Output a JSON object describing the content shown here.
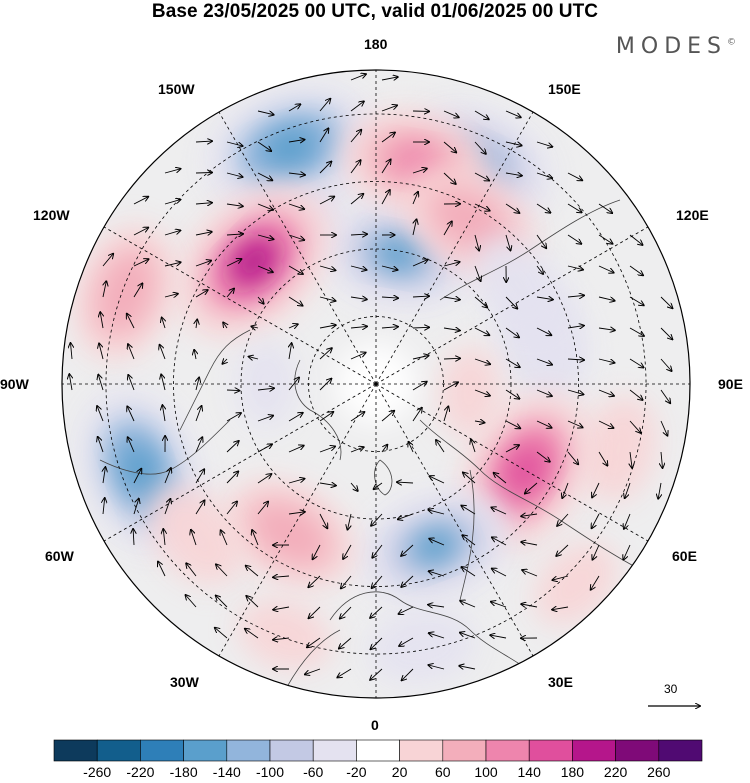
{
  "title": "Base 23/05/2025 00 UTC, valid 01/06/2025 00 UTC",
  "brand": "MODES",
  "brand_mark": "©",
  "longitude_labels": {
    "top": "180",
    "top_left": "150W",
    "top_right": "150E",
    "upper_left": "120W",
    "upper_right": "120E",
    "left": "90W",
    "right": "90E",
    "lower_left": "60W",
    "lower_right": "60E",
    "bottom_left": "30W",
    "bottom_right": "30E",
    "bottom": "0"
  },
  "vector_scale": {
    "value": "30"
  },
  "colorbar": {
    "labels": [
      "-260",
      "-220",
      "-180",
      "-140",
      "-100",
      "-60",
      "-20",
      "20",
      "60",
      "100",
      "140",
      "180",
      "220",
      "260"
    ],
    "colors": [
      "#0d3a5c",
      "#125e8c",
      "#2e7fb8",
      "#5a9fcc",
      "#92b5dc",
      "#c3c9e4",
      "#e4e2f0",
      "#ffffff",
      "#f8d4d6",
      "#f3aebb",
      "#ee85ad",
      "#e04f9d",
      "#b5168b",
      "#7f0a78",
      "#500a72"
    ]
  },
  "anomaly_blobs": [
    {
      "lon": 155,
      "colat": 0.78,
      "value": -140
    },
    {
      "lon": 170,
      "colat": 0.42,
      "value": -150
    },
    {
      "lon": -157,
      "colat": 0.62,
      "value": -60
    },
    {
      "lon": -160,
      "colat": 0.8,
      "value": -180
    },
    {
      "lon": -135,
      "colat": 0.55,
      "value": 190
    },
    {
      "lon": 170,
      "colat": 0.72,
      "value": 130
    },
    {
      "lon": 150,
      "colat": 0.6,
      "value": 120
    },
    {
      "lon": -110,
      "colat": 0.85,
      "value": 120
    },
    {
      "lon": 105,
      "colat": 0.55,
      "value": -100
    },
    {
      "lon": 125,
      "colat": 0.55,
      "value": -60
    },
    {
      "lon": 75,
      "colat": 0.8,
      "value": 60
    },
    {
      "lon": -70,
      "colat": 0.8,
      "value": -170
    },
    {
      "lon": 60,
      "colat": 0.55,
      "value": 170
    },
    {
      "lon": 20,
      "colat": 0.55,
      "value": -150
    },
    {
      "lon": -30,
      "colat": 0.55,
      "value": 120
    },
    {
      "lon": -50,
      "colat": 0.75,
      "value": 70
    },
    {
      "lon": 10,
      "colat": 0.85,
      "value": -60
    },
    {
      "lon": 45,
      "colat": 0.9,
      "value": 40
    },
    {
      "lon": -20,
      "colat": 0.85,
      "value": 40
    },
    {
      "lon": -90,
      "colat": 0.35,
      "value": -25
    },
    {
      "lon": 85,
      "colat": 0.3,
      "value": 30
    }
  ]
}
